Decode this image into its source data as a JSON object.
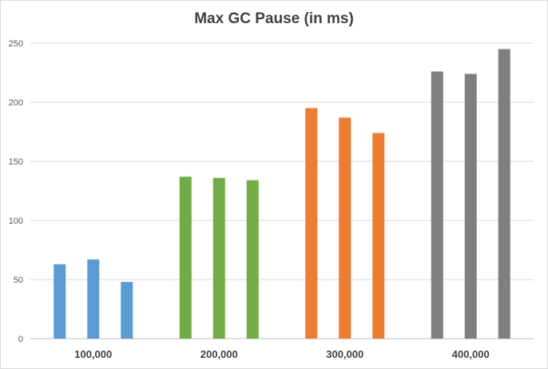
{
  "chart_data": {
    "type": "bar",
    "title": "Max GC Pause (in ms)",
    "xlabel": "",
    "ylabel": "",
    "categories": [
      "100,000",
      "200,000",
      "300,000",
      "400,000"
    ],
    "series": [
      {
        "values": [
          63,
          137,
          195,
          226
        ]
      },
      {
        "values": [
          67,
          136,
          187,
          224
        ]
      },
      {
        "values": [
          48,
          134,
          174,
          245
        ]
      }
    ],
    "category_colors": [
      "#5b9bd5",
      "#70ad47",
      "#ed7d31",
      "#7f7f7f"
    ],
    "ylim": [
      0,
      250
    ],
    "yticks": [
      0,
      50,
      100,
      150,
      200,
      250
    ],
    "grid": true,
    "legend": "none"
  }
}
